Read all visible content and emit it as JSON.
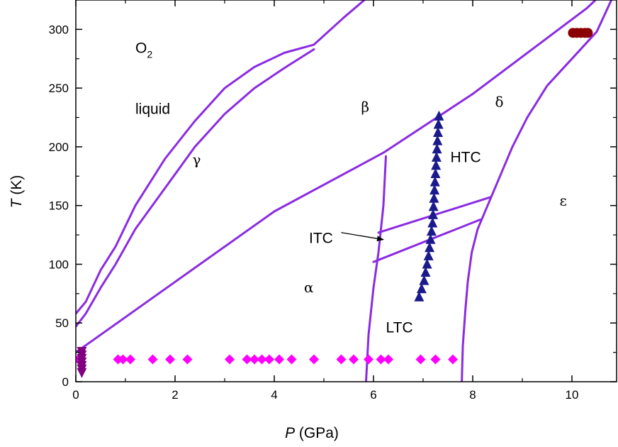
{
  "chart_data": {
    "type": "scatter",
    "xlabel": "P (GPa)",
    "ylabel": "T (K)",
    "xlabel_parts": {
      "italic": "P",
      "rest": " (GPa)"
    },
    "ylabel_parts": {
      "italic": "T",
      "rest": " (K)"
    },
    "xlim": [
      0,
      10.9
    ],
    "ylim": [
      0,
      325
    ],
    "x_ticks": [
      0,
      2,
      4,
      6,
      8,
      10
    ],
    "y_ticks": [
      0,
      50,
      100,
      150,
      200,
      250,
      300
    ],
    "colors": {
      "boundary": "#8a2be2",
      "magenta": "#ff00ff",
      "navy": "#1a1a8c",
      "darkred": "#8b0000",
      "purple": "#800080"
    },
    "region_labels": [
      {
        "name": "o2",
        "text": "O",
        "sub": "2",
        "x": 1.2,
        "y": 280
      },
      {
        "name": "liquid",
        "text": "liquid",
        "x": 1.2,
        "y": 228
      },
      {
        "name": "gamma",
        "text": "γ",
        "x": 2.35,
        "y": 185
      },
      {
        "name": "beta",
        "text": "β",
        "x": 5.75,
        "y": 230
      },
      {
        "name": "delta",
        "text": "δ",
        "x": 8.45,
        "y": 234
      },
      {
        "name": "htc",
        "text": "HTC",
        "x": 7.55,
        "y": 187
      },
      {
        "name": "epsilon",
        "text": "ε",
        "x": 9.75,
        "y": 150
      },
      {
        "name": "itc",
        "text": "ITC",
        "x": 4.7,
        "y": 118
      },
      {
        "name": "alpha",
        "text": "α",
        "x": 4.6,
        "y": 76
      },
      {
        "name": "ltc",
        "text": "LTC",
        "x": 6.25,
        "y": 42
      }
    ],
    "itc_arrow": {
      "from": [
        5.35,
        127
      ],
      "to": [
        6.2,
        121
      ]
    },
    "boundaries": [
      {
        "name": "melting-outer",
        "points": [
          [
            0,
            58
          ],
          [
            0.2,
            68
          ],
          [
            0.5,
            95
          ],
          [
            0.8,
            115
          ],
          [
            1.2,
            150
          ],
          [
            1.8,
            190
          ],
          [
            2.4,
            222
          ],
          [
            3.0,
            250
          ],
          [
            3.6,
            268
          ],
          [
            4.2,
            280
          ],
          [
            4.8,
            287
          ],
          [
            5.4,
            310
          ],
          [
            5.9,
            328
          ]
        ]
      },
      {
        "name": "gamma-beta",
        "points": [
          [
            0,
            47
          ],
          [
            0.2,
            58
          ],
          [
            0.5,
            80
          ],
          [
            0.8,
            100
          ],
          [
            1.2,
            130
          ],
          [
            1.8,
            165
          ],
          [
            2.4,
            200
          ],
          [
            3.0,
            228
          ],
          [
            3.6,
            250
          ],
          [
            4.2,
            267
          ],
          [
            4.8,
            283
          ]
        ]
      },
      {
        "name": "alpha-beta",
        "points": [
          [
            0,
            25
          ],
          [
            2,
            85
          ],
          [
            4,
            145
          ],
          [
            6.2,
            195
          ],
          [
            8,
            245
          ],
          [
            10.3,
            318
          ],
          [
            10.55,
            328
          ]
        ]
      },
      {
        "name": "alpha-ltc",
        "points": [
          [
            5.85,
            0
          ],
          [
            5.9,
            40
          ],
          [
            6.0,
            80
          ],
          [
            6.1,
            110
          ],
          [
            6.2,
            150
          ],
          [
            6.25,
            192
          ]
        ]
      },
      {
        "name": "itc-upper",
        "points": [
          [
            6.1,
            127
          ],
          [
            8.35,
            157
          ]
        ]
      },
      {
        "name": "itc-lower",
        "points": [
          [
            6.0,
            102
          ],
          [
            8.15,
            138
          ]
        ]
      },
      {
        "name": "delta-epsilon",
        "points": [
          [
            10.85,
            330
          ],
          [
            10.5,
            298
          ],
          [
            10.0,
            275
          ],
          [
            9.5,
            252
          ],
          [
            9.1,
            225
          ],
          [
            8.8,
            200
          ],
          [
            8.5,
            170
          ],
          [
            8.3,
            150
          ],
          [
            8.1,
            130
          ],
          [
            7.98,
            110
          ],
          [
            7.9,
            85
          ],
          [
            7.85,
            60
          ],
          [
            7.8,
            30
          ],
          [
            7.78,
            0
          ]
        ]
      }
    ],
    "series": [
      {
        "name": "",
        "marker": "diamond",
        "color": "#ff00ff",
        "points": [
          [
            0.05,
            19
          ],
          [
            0.85,
            19
          ],
          [
            0.95,
            19
          ],
          [
            1.1,
            19
          ],
          [
            1.55,
            19
          ],
          [
            1.9,
            19
          ],
          [
            2.25,
            19
          ],
          [
            3.1,
            19
          ],
          [
            3.45,
            19
          ],
          [
            3.6,
            19
          ],
          [
            3.75,
            19
          ],
          [
            3.9,
            19
          ],
          [
            4.1,
            19
          ],
          [
            4.35,
            19
          ],
          [
            4.8,
            19
          ],
          [
            5.35,
            19
          ],
          [
            5.6,
            19
          ],
          [
            5.9,
            19
          ],
          [
            6.15,
            19
          ],
          [
            6.3,
            19
          ],
          [
            6.95,
            19
          ],
          [
            7.25,
            19
          ],
          [
            7.6,
            19
          ]
        ]
      },
      {
        "name": "",
        "marker": "triangle-down",
        "color": "#800080",
        "points": [
          [
            0.12,
            8
          ],
          [
            0.12,
            11
          ],
          [
            0.12,
            14
          ],
          [
            0.12,
            17
          ],
          [
            0.12,
            20
          ],
          [
            0.12,
            23
          ],
          [
            0.12,
            26
          ]
        ]
      },
      {
        "name": "",
        "marker": "triangle-up",
        "color": "#1a1a8c",
        "points": [
          [
            6.92,
            72
          ],
          [
            6.97,
            79
          ],
          [
            7.02,
            86
          ],
          [
            7.05,
            93
          ],
          [
            7.08,
            100
          ],
          [
            7.11,
            107
          ],
          [
            7.13,
            114
          ],
          [
            7.15,
            121
          ],
          [
            7.17,
            128
          ],
          [
            7.19,
            135
          ],
          [
            7.2,
            142
          ],
          [
            7.21,
            149
          ],
          [
            7.22,
            156
          ],
          [
            7.23,
            163
          ],
          [
            7.24,
            170
          ],
          [
            7.25,
            177
          ],
          [
            7.26,
            184
          ],
          [
            7.27,
            191
          ],
          [
            7.28,
            198
          ],
          [
            7.29,
            205
          ],
          [
            7.3,
            212
          ],
          [
            7.31,
            219
          ],
          [
            7.32,
            226
          ]
        ]
      },
      {
        "name": "",
        "marker": "circle",
        "color": "#8b0000",
        "points": [
          [
            10.02,
            297
          ],
          [
            10.1,
            297
          ],
          [
            10.18,
            297
          ],
          [
            10.26,
            297
          ],
          [
            10.32,
            297
          ]
        ]
      }
    ]
  }
}
